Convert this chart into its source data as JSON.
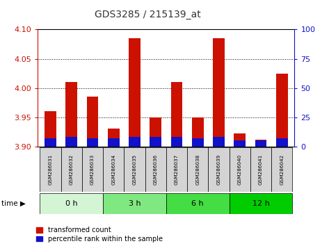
{
  "title": "GDS3285 / 215139_at",
  "samples": [
    "GSM286031",
    "GSM286032",
    "GSM286033",
    "GSM286034",
    "GSM286035",
    "GSM286036",
    "GSM286037",
    "GSM286038",
    "GSM286039",
    "GSM286040",
    "GSM286041",
    "GSM286042"
  ],
  "transformed_count": [
    3.96,
    4.01,
    3.985,
    3.93,
    4.085,
    3.95,
    4.01,
    3.95,
    4.085,
    3.922,
    3.912,
    4.025
  ],
  "percentile_rank": [
    7,
    8,
    7,
    7,
    8,
    8,
    8,
    7,
    8,
    5,
    5,
    7
  ],
  "ylim_left": [
    3.9,
    4.1
  ],
  "ylim_right": [
    0,
    100
  ],
  "yticks_left": [
    3.9,
    3.95,
    4.0,
    4.05,
    4.1
  ],
  "yticks_right": [
    0,
    25,
    50,
    75,
    100
  ],
  "bar_width": 0.55,
  "bar_color_red": "#cc1100",
  "bar_color_blue": "#1111cc",
  "baseline": 3.9,
  "legend_red": "transformed count",
  "legend_blue": "percentile rank within the sample",
  "title_color": "#333333",
  "axis_color_left": "#cc1100",
  "axis_color_right": "#1111cc",
  "group_defs": [
    {
      "label": "0 h",
      "start": 0,
      "end": 2,
      "color": "#d4f5d4"
    },
    {
      "label": "3 h",
      "start": 3,
      "end": 5,
      "color": "#80e880"
    },
    {
      "label": "6 h",
      "start": 6,
      "end": 8,
      "color": "#44dd44"
    },
    {
      "label": "12 h",
      "start": 9,
      "end": 11,
      "color": "#00cc00"
    }
  ]
}
